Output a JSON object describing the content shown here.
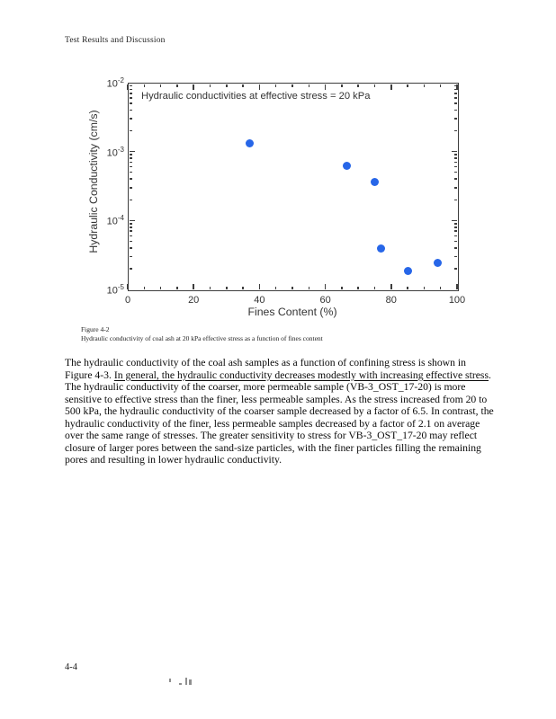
{
  "page": {
    "header": "Test Results and Discussion",
    "page_number": "4-4"
  },
  "figure": {
    "label": "Figure 4-2",
    "caption": "Hydraulic conductivity of coal ash at 20 kPa effective stress as a function of fines content"
  },
  "chart_data": {
    "type": "scatter",
    "annotation": "Hydraulic conductivities at effective stress = 20 kPa",
    "xlabel": "Fines Content (%)",
    "ylabel": "Hydraulic Conductivity (cm/s)",
    "xlim": [
      0,
      100
    ],
    "x_major_ticks": [
      0,
      20,
      40,
      60,
      80,
      100
    ],
    "x_minor_step": 5,
    "y_scale": "log",
    "ylim": [
      1e-05,
      0.01
    ],
    "ylim_exponents": [
      -2,
      -5
    ],
    "y_tick_exponents": [
      -2,
      -3,
      -4,
      -5
    ],
    "grid": false,
    "legend": null,
    "marker_color": "#2766e8",
    "points": [
      {
        "x": 37,
        "y": 0.0013
      },
      {
        "x": 66.5,
        "y": 0.00063
      },
      {
        "x": 75,
        "y": 0.00036
      },
      {
        "x": 77,
        "y": 3.9e-05
      },
      {
        "x": 85,
        "y": 1.85e-05
      },
      {
        "x": 94,
        "y": 2.45e-05
      }
    ]
  },
  "paragraph": {
    "before": "The hydraulic conductivity of the coal ash samples as a function of confining stress is shown in Figure 4-3. ",
    "underlined": "In general, the hydraulic conductivity decreases  modestly with increasing effective stress",
    "after": ". The hydraulic conductivity of the coarser, more permeable sample (VB-3_OST_17-20) is more sensitive to effective stress than the finer, less permeable samples. As the stress increased from 20 to 500 kPa, the hydraulic conductivity of the coarser sample decreased by a factor of 6.5. In contrast, the hydraulic conductivity of the finer, less permeable samples decreased by a factor of 2.1 on average over the same range of stresses. The greater sensitivity to stress for VB-3_OST_17-20 may reflect closure of larger pores between the sand-size particles, with the finer particles filling the remaining pores and resulting in lower hydraulic conductivity."
  }
}
